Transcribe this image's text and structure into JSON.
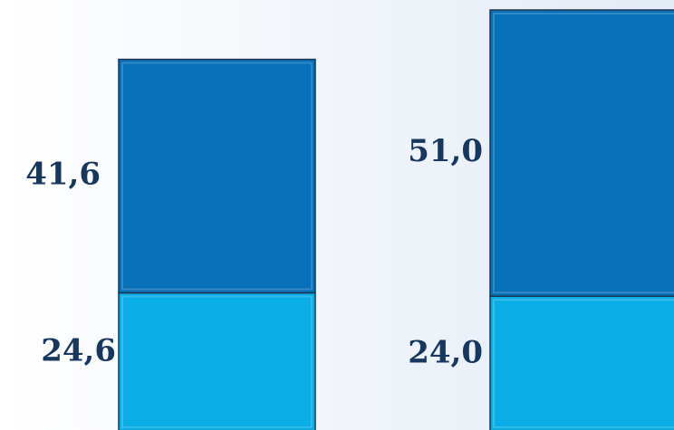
{
  "chart_data": {
    "type": "bar",
    "stacked": true,
    "categories": [
      null,
      null
    ],
    "series": [
      {
        "color": "#0aaee6",
        "values": [
          24.6,
          24.0
        ],
        "value_labels": [
          "24,6",
          "24,0"
        ]
      },
      {
        "color": "#0670b8",
        "values": [
          41.6,
          51.0
        ],
        "value_labels": [
          "41,6",
          "51,0"
        ]
      }
    ]
  }
}
